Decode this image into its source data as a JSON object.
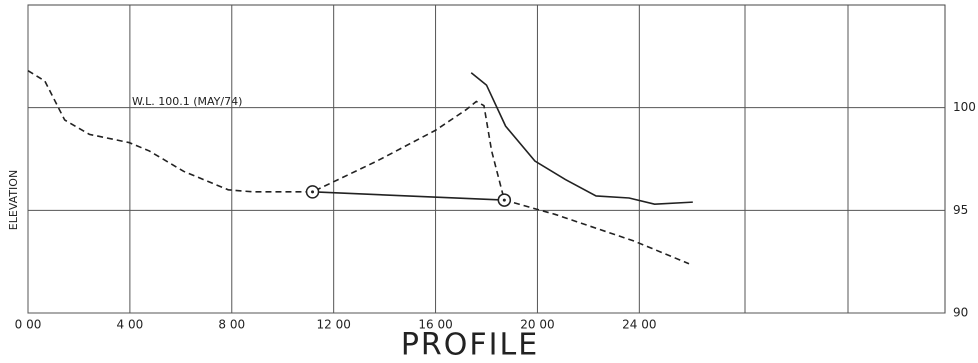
{
  "chart_data": {
    "type": "line",
    "title": "PROFILE",
    "y_label": "ELEVATION",
    "annotation": "W.L. 100.1 (MAY/74)",
    "xlim": [
      0,
      36
    ],
    "ylim": [
      90,
      105
    ],
    "xticks": [
      {
        "value": 0,
        "label": "0 00"
      },
      {
        "value": 4,
        "label": "4 00"
      },
      {
        "value": 8,
        "label": "8 00"
      },
      {
        "value": 12,
        "label": "12 00"
      },
      {
        "value": 16,
        "label": "16 00"
      },
      {
        "value": 20,
        "label": "20 00"
      },
      {
        "value": 24,
        "label": "24 00"
      }
    ],
    "yticks": [
      90,
      95,
      100
    ],
    "grid": true,
    "series": [
      {
        "color": "#222222",
        "dashed": true,
        "x": [
          0,
          0.66,
          1.44,
          2.41,
          3.97,
          4.75,
          6.11,
          7.86,
          8.83,
          11.17,
          13.7,
          16.0,
          17.2,
          17.6,
          17.9,
          18.2,
          18.7,
          20.7,
          23.8,
          25.95
        ],
        "values": [
          101.8,
          101.3,
          99.4,
          98.7,
          98.3,
          97.9,
          96.9,
          96.0,
          95.9,
          95.9,
          97.4,
          98.9,
          99.9,
          100.3,
          100.1,
          97.9,
          95.5,
          94.8,
          93.5,
          92.4
        ]
      },
      {
        "color": "#222222",
        "dashed": false,
        "marker": "circle",
        "x": [
          11.17,
          18.7
        ],
        "values": [
          95.9,
          95.5
        ]
      },
      {
        "color": "#222222",
        "dashed": false,
        "x": [
          17.4,
          18.0,
          18.75,
          19.9,
          21.1,
          22.3,
          23.6,
          24.6,
          26.1
        ],
        "values": [
          101.7,
          101.1,
          99.1,
          97.4,
          96.5,
          95.7,
          95.6,
          95.3,
          95.4
        ]
      }
    ]
  }
}
